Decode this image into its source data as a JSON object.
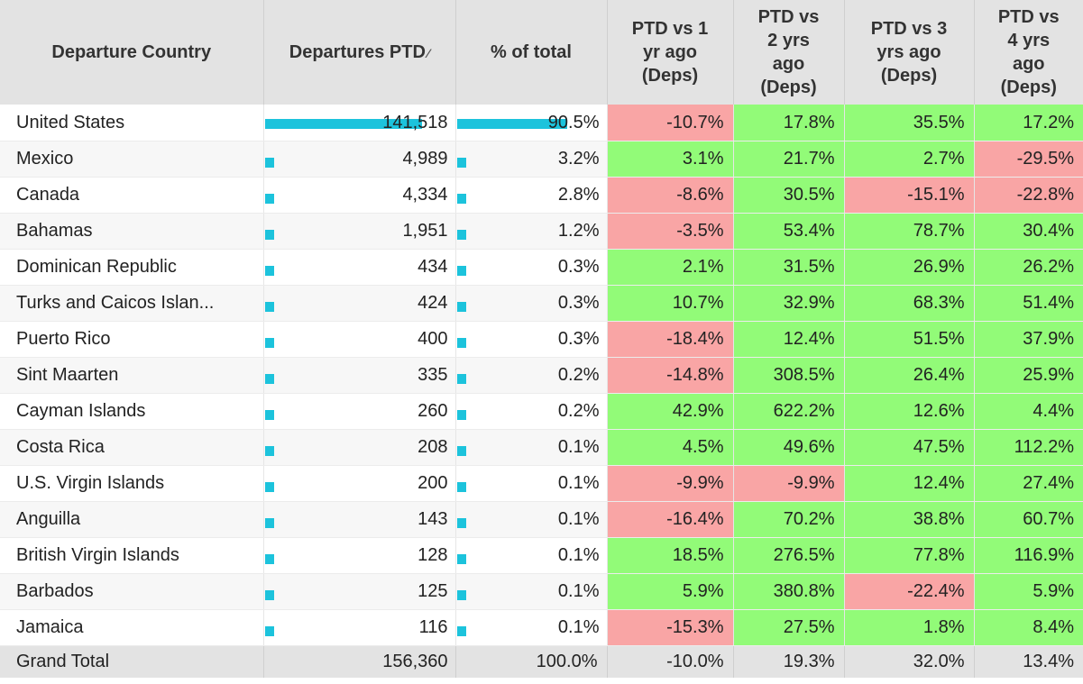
{
  "headers": {
    "country": "Departure Country",
    "departures": "Departures PTD",
    "sort_icon": "sort-desc-icon",
    "share": "% of total",
    "vs1": [
      "PTD vs 1",
      "yr ago",
      "(Deps)"
    ],
    "vs2": [
      "PTD vs",
      "2 yrs",
      "ago",
      "(Deps)"
    ],
    "vs3": [
      "PTD vs 3",
      "yrs ago",
      "(Deps)"
    ],
    "vs4": [
      "PTD vs",
      "4 yrs",
      "ago",
      "(Deps)"
    ]
  },
  "colors": {
    "bar": "#1cc3dc",
    "negative": "#f9a5a5",
    "positive": "#92fb78"
  },
  "rows": [
    {
      "country": "United States",
      "departures": "141,518",
      "dep_share": 1.0,
      "share": "90.5%",
      "share_frac": 0.905,
      "vs1": "-10.7%",
      "vs2": "17.8%",
      "vs3": "35.5%",
      "vs4": "17.2%"
    },
    {
      "country": "Mexico",
      "departures": "4,989",
      "dep_share": 0.035,
      "share": "3.2%",
      "share_frac": 0.032,
      "vs1": "3.1%",
      "vs2": "21.7%",
      "vs3": "2.7%",
      "vs4": "-29.5%"
    },
    {
      "country": "Canada",
      "departures": "4,334",
      "dep_share": 0.031,
      "share": "2.8%",
      "share_frac": 0.028,
      "vs1": "-8.6%",
      "vs2": "30.5%",
      "vs3": "-15.1%",
      "vs4": "-22.8%"
    },
    {
      "country": "Bahamas",
      "departures": "1,951",
      "dep_share": 0.014,
      "share": "1.2%",
      "share_frac": 0.012,
      "vs1": "-3.5%",
      "vs2": "53.4%",
      "vs3": "78.7%",
      "vs4": "30.4%"
    },
    {
      "country": "Dominican Republic",
      "departures": "434",
      "dep_share": 0.003,
      "share": "0.3%",
      "share_frac": 0.003,
      "vs1": "2.1%",
      "vs2": "31.5%",
      "vs3": "26.9%",
      "vs4": "26.2%"
    },
    {
      "country": "Turks and Caicos Islan...",
      "departures": "424",
      "dep_share": 0.003,
      "share": "0.3%",
      "share_frac": 0.003,
      "vs1": "10.7%",
      "vs2": "32.9%",
      "vs3": "68.3%",
      "vs4": "51.4%"
    },
    {
      "country": "Puerto Rico",
      "departures": "400",
      "dep_share": 0.003,
      "share": "0.3%",
      "share_frac": 0.003,
      "vs1": "-18.4%",
      "vs2": "12.4%",
      "vs3": "51.5%",
      "vs4": "37.9%"
    },
    {
      "country": "Sint Maarten",
      "departures": "335",
      "dep_share": 0.002,
      "share": "0.2%",
      "share_frac": 0.002,
      "vs1": "-14.8%",
      "vs2": "308.5%",
      "vs3": "26.4%",
      "vs4": "25.9%"
    },
    {
      "country": "Cayman Islands",
      "departures": "260",
      "dep_share": 0.002,
      "share": "0.2%",
      "share_frac": 0.002,
      "vs1": "42.9%",
      "vs2": "622.2%",
      "vs3": "12.6%",
      "vs4": "4.4%"
    },
    {
      "country": "Costa Rica",
      "departures": "208",
      "dep_share": 0.001,
      "share": "0.1%",
      "share_frac": 0.001,
      "vs1": "4.5%",
      "vs2": "49.6%",
      "vs3": "47.5%",
      "vs4": "112.2%"
    },
    {
      "country": "U.S. Virgin Islands",
      "departures": "200",
      "dep_share": 0.001,
      "share": "0.1%",
      "share_frac": 0.001,
      "vs1": "-9.9%",
      "vs2": "-9.9%",
      "vs3": "12.4%",
      "vs4": "27.4%"
    },
    {
      "country": "Anguilla",
      "departures": "143",
      "dep_share": 0.001,
      "share": "0.1%",
      "share_frac": 0.001,
      "vs1": "-16.4%",
      "vs2": "70.2%",
      "vs3": "38.8%",
      "vs4": "60.7%"
    },
    {
      "country": "British Virgin Islands",
      "departures": "128",
      "dep_share": 0.001,
      "share": "0.1%",
      "share_frac": 0.001,
      "vs1": "18.5%",
      "vs2": "276.5%",
      "vs3": "77.8%",
      "vs4": "116.9%"
    },
    {
      "country": "Barbados",
      "departures": "125",
      "dep_share": 0.001,
      "share": "0.1%",
      "share_frac": 0.001,
      "vs1": "5.9%",
      "vs2": "380.8%",
      "vs3": "-22.4%",
      "vs4": "5.9%"
    },
    {
      "country": "Jamaica",
      "departures": "116",
      "dep_share": 0.001,
      "share": "0.1%",
      "share_frac": 0.001,
      "vs1": "-15.3%",
      "vs2": "27.5%",
      "vs3": "1.8%",
      "vs4": "8.4%"
    }
  ],
  "total": {
    "country": "Grand Total",
    "departures": "156,360",
    "share": "100.0%",
    "vs1": "-10.0%",
    "vs2": "19.3%",
    "vs3": "32.0%",
    "vs4": "13.4%"
  }
}
